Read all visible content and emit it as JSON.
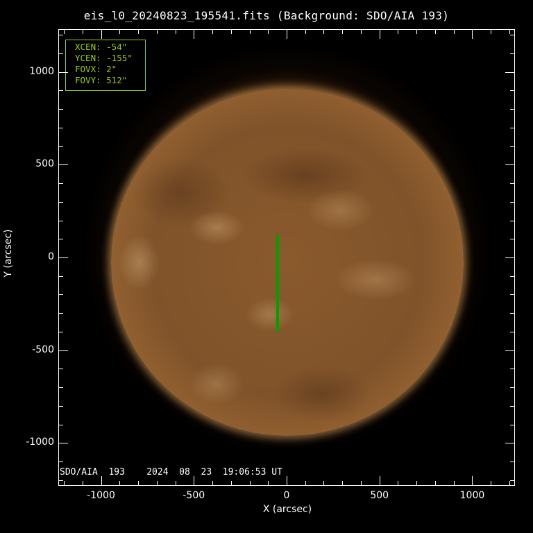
{
  "title": "eis_l0_20240823_195541.fits  (Background: SDO/AIA 193)",
  "info_box": {
    "lines": [
      "XCEN:  -54\"",
      "YCEN:  -155\"",
      "FOVX:  2\"",
      "FOVY:  512\""
    ],
    "color": "#9acd00"
  },
  "stamp": "SDO/AIA  193    2024  08  23  19:06:53 UT",
  "slit_color": "#00a000",
  "x_axis": {
    "label": "X (arcsec)",
    "ticks": [
      -1000,
      -500,
      0,
      500,
      1000
    ],
    "range": [
      -1230,
      1230
    ]
  },
  "y_axis": {
    "label": "Y (arcsec)",
    "ticks": [
      -1000,
      -500,
      0,
      500,
      1000
    ],
    "range": [
      -1230,
      1230
    ]
  }
}
